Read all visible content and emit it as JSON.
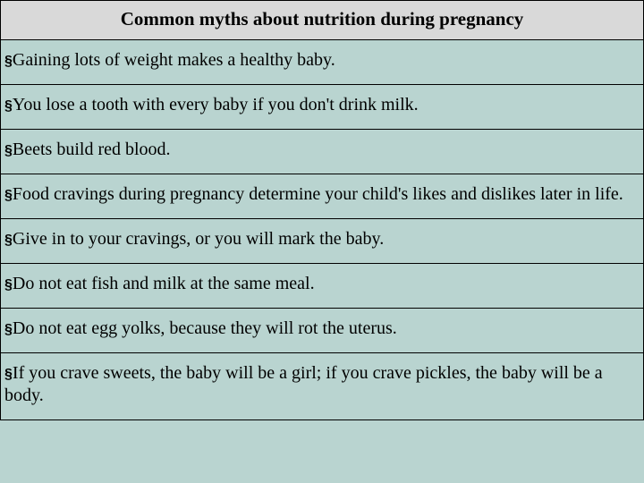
{
  "table": {
    "type": "table",
    "background_color_header": "#d9d9d9",
    "background_color_rows": "#b9d4d0",
    "border_color": "#000000",
    "text_color": "#000000",
    "font_family": "Times New Roman",
    "header_fontsize": 21,
    "row_fontsize": 20,
    "header_fontweight": "bold",
    "bullet_char": "§",
    "title": "Common myths about nutrition during pregnancy",
    "rows": [
      "Gaining lots of weight makes a healthy baby.",
      "You lose a tooth with every baby if you don't drink milk.",
      "Beets build red blood.",
      "Food cravings during pregnancy determine your child's likes and dislikes later in life.",
      "Give in to your cravings, or you will mark the baby.",
      "Do not eat fish and milk at the same meal.",
      "Do not eat egg yolks, because they will rot the uterus.",
      "If you crave sweets, the baby will be a girl; if you crave pickles, the baby will be a body."
    ]
  }
}
